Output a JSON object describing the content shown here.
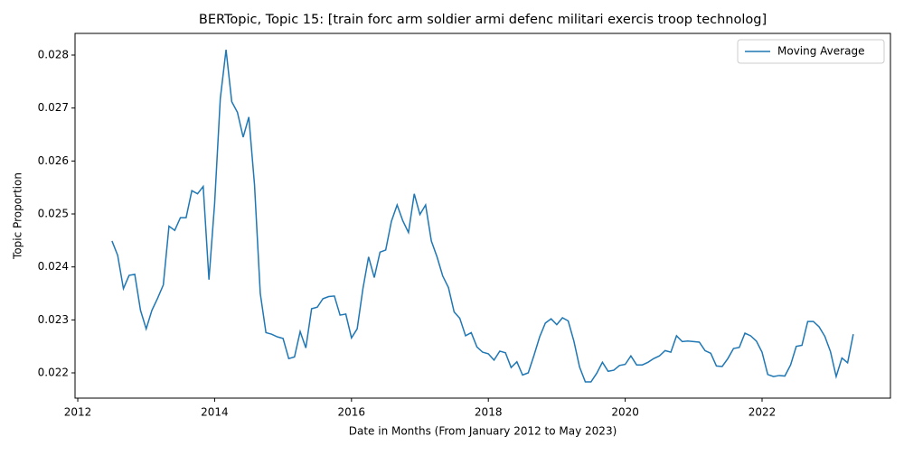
{
  "chart_data": {
    "type": "line",
    "title": "BERTopic, Topic 15: [train forc arm soldier armi defenc militari exercis troop technolog]",
    "x_label": "Date in Months (From January 2012 to May 2023)",
    "y_label": "Topic Proportion",
    "x": [
      2012.5,
      2012.583,
      2012.667,
      2012.75,
      2012.833,
      2012.917,
      2013,
      2013.083,
      2013.167,
      2013.25,
      2013.333,
      2013.417,
      2013.5,
      2013.583,
      2013.667,
      2013.75,
      2013.833,
      2013.917,
      2014,
      2014.083,
      2014.167,
      2014.25,
      2014.333,
      2014.417,
      2014.5,
      2014.583,
      2014.667,
      2014.75,
      2014.833,
      2014.917,
      2015,
      2015.083,
      2015.167,
      2015.25,
      2015.333,
      2015.417,
      2015.5,
      2015.583,
      2015.667,
      2015.75,
      2015.833,
      2015.917,
      2016,
      2016.083,
      2016.167,
      2016.25,
      2016.333,
      2016.417,
      2016.5,
      2016.583,
      2016.667,
      2016.75,
      2016.833,
      2016.917,
      2017,
      2017.083,
      2017.167,
      2017.25,
      2017.333,
      2017.417,
      2017.5,
      2017.583,
      2017.667,
      2017.75,
      2017.833,
      2017.917,
      2018,
      2018.083,
      2018.167,
      2018.25,
      2018.333,
      2018.417,
      2018.5,
      2018.583,
      2018.667,
      2018.75,
      2018.833,
      2018.917,
      2019,
      2019.083,
      2019.167,
      2019.25,
      2019.333,
      2019.417,
      2019.5,
      2019.583,
      2019.667,
      2019.75,
      2019.833,
      2019.917,
      2020,
      2020.083,
      2020.167,
      2020.25,
      2020.333,
      2020.417,
      2020.5,
      2020.583,
      2020.667,
      2020.75,
      2020.833,
      2020.917,
      2021,
      2021.083,
      2021.167,
      2021.25,
      2021.333,
      2021.417,
      2021.5,
      2021.583,
      2021.667,
      2021.75,
      2021.833,
      2021.917,
      2022,
      2022.083,
      2022.167,
      2022.25,
      2022.333,
      2022.417,
      2022.5,
      2022.583,
      2022.667,
      2022.75,
      2022.833,
      2022.917,
      2023,
      2023.083,
      2023.167,
      2023.25,
      2023.333
    ],
    "series": [
      {
        "name": "Moving Average",
        "color": "#1f77b4",
        "values": [
          0.02449,
          0.02422,
          0.02359,
          0.02384,
          0.02386,
          0.02318,
          0.02283,
          0.02318,
          0.02341,
          0.02366,
          0.02477,
          0.02469,
          0.02493,
          0.02493,
          0.02544,
          0.02538,
          0.02552,
          0.02376,
          0.0252,
          0.02718,
          0.0281,
          0.02712,
          0.02692,
          0.02645,
          0.02683,
          0.02555,
          0.0235,
          0.02276,
          0.02273,
          0.02268,
          0.02265,
          0.02227,
          0.0223,
          0.02278,
          0.02247,
          0.02321,
          0.02324,
          0.0234,
          0.02344,
          0.02345,
          0.02309,
          0.02311,
          0.02266,
          0.02283,
          0.02359,
          0.02419,
          0.0238,
          0.02428,
          0.02432,
          0.02486,
          0.02517,
          0.02487,
          0.02465,
          0.02538,
          0.02499,
          0.02517,
          0.02449,
          0.02419,
          0.02383,
          0.02361,
          0.02315,
          0.02303,
          0.0227,
          0.02276,
          0.02249,
          0.02239,
          0.02236,
          0.02224,
          0.02241,
          0.02238,
          0.0221,
          0.02221,
          0.02196,
          0.022,
          0.02233,
          0.02268,
          0.02294,
          0.02302,
          0.02291,
          0.02304,
          0.02298,
          0.0226,
          0.02211,
          0.02183,
          0.02183,
          0.02199,
          0.0222,
          0.02203,
          0.02205,
          0.02214,
          0.02216,
          0.02232,
          0.02215,
          0.02215,
          0.0222,
          0.02227,
          0.02232,
          0.02242,
          0.02239,
          0.0227,
          0.02259,
          0.0226,
          0.02259,
          0.02258,
          0.02242,
          0.02237,
          0.02213,
          0.02212,
          0.02227,
          0.02246,
          0.02248,
          0.02275,
          0.0227,
          0.0226,
          0.02239,
          0.02197,
          0.02193,
          0.02195,
          0.02194,
          0.02215,
          0.0225,
          0.02252,
          0.02297,
          0.02297,
          0.02287,
          0.02269,
          0.0224,
          0.02193,
          0.02228,
          0.02219,
          0.02273
        ]
      }
    ],
    "xlim": [
      2011.96,
      2023.876
    ],
    "xticks": [
      2012,
      2014,
      2016,
      2018,
      2020,
      2022
    ],
    "ylim": [
      0.021523,
      0.028409
    ],
    "yticks": [
      0.022,
      0.023,
      0.024,
      0.025,
      0.026,
      0.027,
      0.028
    ],
    "legend": "upper right"
  }
}
